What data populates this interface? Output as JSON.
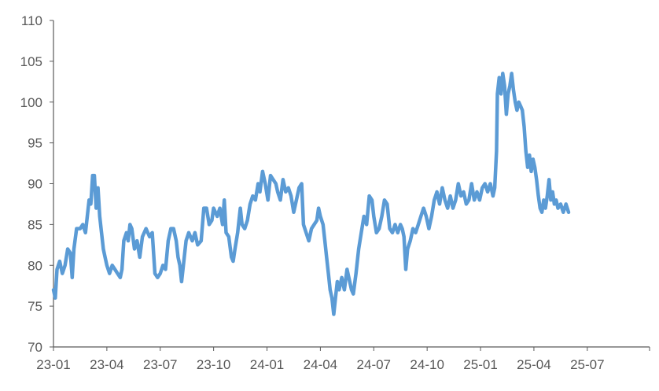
{
  "chart_data": {
    "type": "line",
    "title": "",
    "xlabel": "",
    "ylabel": "",
    "ylim": [
      70,
      110
    ],
    "yticks": [
      70,
      75,
      80,
      85,
      90,
      95,
      100,
      105,
      110
    ],
    "xlim": [
      0,
      33.5
    ],
    "xticks": [
      {
        "label": "23-01",
        "x": 0
      },
      {
        "label": "23-04",
        "x": 3
      },
      {
        "label": "23-07",
        "x": 6
      },
      {
        "label": "23-10",
        "x": 9
      },
      {
        "label": "24-01",
        "x": 12
      },
      {
        "label": "24-04",
        "x": 15
      },
      {
        "label": "24-07",
        "x": 18
      },
      {
        "label": "24-10",
        "x": 21
      },
      {
        "label": "25-01",
        "x": 24
      },
      {
        "label": "25-04",
        "x": 27
      },
      {
        "label": "25-07",
        "x": 30
      }
    ],
    "grid": false,
    "legend": "none",
    "line_color": "#5b9bd5",
    "axis_color": "#595959",
    "series": [
      {
        "name": "",
        "points": [
          [
            0.0,
            77.0
          ],
          [
            0.1,
            76.0
          ],
          [
            0.2,
            79.5
          ],
          [
            0.35,
            80.5
          ],
          [
            0.5,
            79.0
          ],
          [
            0.65,
            80.0
          ],
          [
            0.8,
            82.0
          ],
          [
            0.95,
            81.5
          ],
          [
            1.05,
            78.5
          ],
          [
            1.15,
            82.0
          ],
          [
            1.3,
            84.5
          ],
          [
            1.5,
            84.5
          ],
          [
            1.65,
            85.0
          ],
          [
            1.8,
            84.0
          ],
          [
            1.9,
            86.0
          ],
          [
            2.0,
            88.0
          ],
          [
            2.1,
            87.5
          ],
          [
            2.2,
            91.0
          ],
          [
            2.3,
            91.0
          ],
          [
            2.4,
            87.0
          ],
          [
            2.5,
            89.5
          ],
          [
            2.6,
            86.0
          ],
          [
            2.7,
            84.0
          ],
          [
            2.8,
            82.0
          ],
          [
            2.9,
            81.0
          ],
          [
            3.0,
            80.0
          ],
          [
            3.15,
            79.0
          ],
          [
            3.3,
            80.0
          ],
          [
            3.45,
            79.5
          ],
          [
            3.6,
            79.0
          ],
          [
            3.75,
            78.5
          ],
          [
            3.85,
            79.5
          ],
          [
            3.95,
            83.0
          ],
          [
            4.1,
            84.0
          ],
          [
            4.2,
            83.0
          ],
          [
            4.3,
            85.0
          ],
          [
            4.4,
            84.5
          ],
          [
            4.55,
            82.0
          ],
          [
            4.7,
            83.0
          ],
          [
            4.85,
            81.0
          ],
          [
            5.0,
            83.5
          ],
          [
            5.2,
            84.5
          ],
          [
            5.4,
            83.5
          ],
          [
            5.55,
            84.0
          ],
          [
            5.7,
            79.0
          ],
          [
            5.85,
            78.5
          ],
          [
            6.0,
            79.0
          ],
          [
            6.15,
            80.0
          ],
          [
            6.3,
            79.5
          ],
          [
            6.45,
            83.0
          ],
          [
            6.6,
            84.5
          ],
          [
            6.75,
            84.5
          ],
          [
            6.9,
            83.0
          ],
          [
            7.0,
            81.0
          ],
          [
            7.1,
            80.0
          ],
          [
            7.2,
            78.0
          ],
          [
            7.3,
            80.0
          ],
          [
            7.45,
            83.0
          ],
          [
            7.6,
            84.0
          ],
          [
            7.8,
            83.0
          ],
          [
            7.95,
            84.0
          ],
          [
            8.1,
            82.5
          ],
          [
            8.3,
            83.0
          ],
          [
            8.45,
            87.0
          ],
          [
            8.6,
            87.0
          ],
          [
            8.75,
            85.0
          ],
          [
            8.9,
            85.5
          ],
          [
            9.0,
            87.0
          ],
          [
            9.2,
            86.0
          ],
          [
            9.35,
            87.0
          ],
          [
            9.5,
            85.0
          ],
          [
            9.6,
            88.0
          ],
          [
            9.7,
            84.0
          ],
          [
            9.85,
            83.5
          ],
          [
            10.0,
            81.0
          ],
          [
            10.1,
            80.5
          ],
          [
            10.2,
            82.0
          ],
          [
            10.35,
            84.0
          ],
          [
            10.5,
            87.0
          ],
          [
            10.6,
            85.0
          ],
          [
            10.75,
            84.5
          ],
          [
            10.9,
            85.5
          ],
          [
            11.05,
            87.5
          ],
          [
            11.2,
            88.5
          ],
          [
            11.35,
            88.0
          ],
          [
            11.5,
            90.0
          ],
          [
            11.6,
            89.0
          ],
          [
            11.75,
            91.5
          ],
          [
            11.9,
            90.0
          ],
          [
            12.05,
            88.0
          ],
          [
            12.2,
            91.0
          ],
          [
            12.35,
            90.5
          ],
          [
            12.5,
            90.0
          ],
          [
            12.6,
            89.0
          ],
          [
            12.75,
            88.0
          ],
          [
            12.9,
            90.5
          ],
          [
            13.05,
            89.0
          ],
          [
            13.2,
            89.5
          ],
          [
            13.35,
            88.5
          ],
          [
            13.5,
            86.5
          ],
          [
            13.65,
            88.0
          ],
          [
            13.8,
            89.5
          ],
          [
            13.95,
            90.0
          ],
          [
            14.05,
            85.0
          ],
          [
            14.2,
            84.0
          ],
          [
            14.35,
            83.0
          ],
          [
            14.5,
            84.5
          ],
          [
            14.65,
            85.0
          ],
          [
            14.8,
            85.5
          ],
          [
            14.9,
            87.0
          ],
          [
            15.0,
            86.0
          ],
          [
            15.15,
            85.0
          ],
          [
            15.25,
            83.0
          ],
          [
            15.35,
            81.0
          ],
          [
            15.45,
            79.0
          ],
          [
            15.55,
            77.0
          ],
          [
            15.65,
            76.0
          ],
          [
            15.75,
            74.0
          ],
          [
            15.85,
            76.0
          ],
          [
            15.95,
            78.0
          ],
          [
            16.05,
            77.0
          ],
          [
            16.2,
            78.5
          ],
          [
            16.35,
            77.0
          ],
          [
            16.5,
            79.5
          ],
          [
            16.65,
            78.0
          ],
          [
            16.75,
            77.0
          ],
          [
            16.85,
            76.5
          ],
          [
            17.0,
            79.0
          ],
          [
            17.15,
            82.0
          ],
          [
            17.3,
            84.0
          ],
          [
            17.45,
            86.0
          ],
          [
            17.6,
            85.0
          ],
          [
            17.75,
            88.5
          ],
          [
            17.9,
            88.0
          ],
          [
            18.0,
            86.0
          ],
          [
            18.15,
            84.0
          ],
          [
            18.3,
            84.5
          ],
          [
            18.45,
            86.0
          ],
          [
            18.6,
            88.0
          ],
          [
            18.75,
            87.5
          ],
          [
            18.9,
            84.5
          ],
          [
            19.05,
            84.0
          ],
          [
            19.2,
            85.0
          ],
          [
            19.35,
            84.0
          ],
          [
            19.5,
            85.0
          ],
          [
            19.6,
            84.5
          ],
          [
            19.7,
            83.5
          ],
          [
            19.8,
            79.5
          ],
          [
            19.9,
            82.0
          ],
          [
            20.05,
            83.0
          ],
          [
            20.2,
            84.5
          ],
          [
            20.35,
            84.0
          ],
          [
            20.5,
            85.0
          ],
          [
            20.65,
            86.0
          ],
          [
            20.8,
            87.0
          ],
          [
            20.95,
            86.0
          ],
          [
            21.1,
            84.5
          ],
          [
            21.25,
            86.0
          ],
          [
            21.4,
            88.0
          ],
          [
            21.55,
            89.0
          ],
          [
            21.7,
            87.5
          ],
          [
            21.85,
            89.5
          ],
          [
            22.0,
            88.0
          ],
          [
            22.15,
            87.0
          ],
          [
            22.3,
            88.5
          ],
          [
            22.45,
            87.0
          ],
          [
            22.6,
            88.0
          ],
          [
            22.75,
            90.0
          ],
          [
            22.9,
            88.5
          ],
          [
            23.05,
            89.0
          ],
          [
            23.2,
            87.5
          ],
          [
            23.35,
            88.0
          ],
          [
            23.5,
            90.0
          ],
          [
            23.65,
            88.0
          ],
          [
            23.8,
            89.0
          ],
          [
            23.95,
            88.0
          ],
          [
            24.1,
            89.5
          ],
          [
            24.25,
            90.0
          ],
          [
            24.4,
            89.0
          ],
          [
            24.55,
            90.0
          ],
          [
            24.7,
            88.5
          ],
          [
            24.8,
            89.5
          ],
          [
            24.9,
            94.0
          ],
          [
            24.95,
            101.0
          ],
          [
            25.05,
            103.0
          ],
          [
            25.15,
            101.0
          ],
          [
            25.25,
            103.5
          ],
          [
            25.35,
            102.0
          ],
          [
            25.45,
            98.5
          ],
          [
            25.55,
            101.0
          ],
          [
            25.65,
            102.0
          ],
          [
            25.75,
            103.5
          ],
          [
            25.85,
            101.5
          ],
          [
            25.95,
            100.0
          ],
          [
            26.05,
            99.0
          ],
          [
            26.15,
            100.0
          ],
          [
            26.25,
            99.5
          ],
          [
            26.35,
            99.0
          ],
          [
            26.45,
            97.0
          ],
          [
            26.55,
            94.0
          ],
          [
            26.65,
            92.0
          ],
          [
            26.75,
            93.5
          ],
          [
            26.85,
            91.5
          ],
          [
            26.95,
            93.0
          ],
          [
            27.05,
            92.0
          ],
          [
            27.15,
            90.5
          ],
          [
            27.25,
            88.5
          ],
          [
            27.35,
            87.0
          ],
          [
            27.45,
            86.5
          ],
          [
            27.55,
            88.0
          ],
          [
            27.65,
            87.0
          ],
          [
            27.75,
            88.5
          ],
          [
            27.85,
            90.5
          ],
          [
            27.95,
            88.0
          ],
          [
            28.05,
            89.0
          ],
          [
            28.15,
            87.5
          ],
          [
            28.25,
            88.0
          ],
          [
            28.35,
            87.0
          ],
          [
            28.5,
            87.5
          ],
          [
            28.65,
            86.5
          ],
          [
            28.8,
            87.5
          ],
          [
            28.95,
            86.5
          ]
        ]
      }
    ]
  }
}
